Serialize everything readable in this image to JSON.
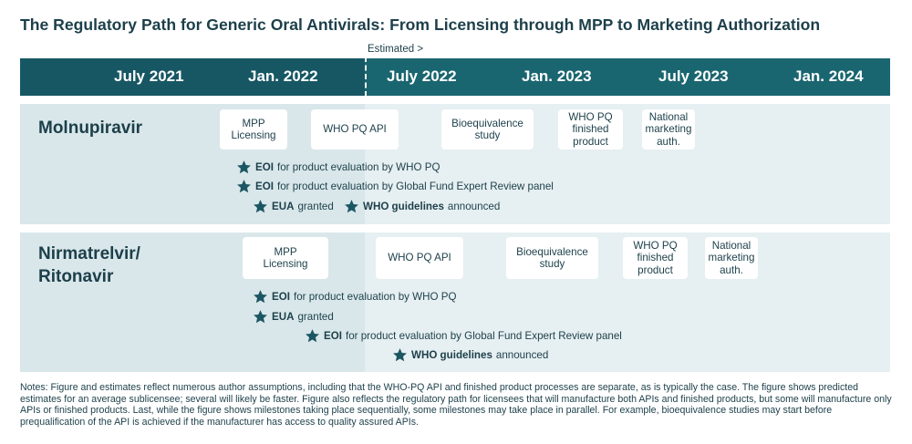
{
  "title": "The Regulatory Path for Generic Oral Antivirals: From Licensing through MPP to Marketing Authorization",
  "estimated_label": "Estimated >",
  "timeline": [
    "July 2021",
    "Jan. 2022",
    "July 2022",
    "Jan. 2023",
    "July 2023",
    "Jan. 2024"
  ],
  "rows": [
    {
      "label": "Molnupiravir",
      "milestones": [
        "MPP\nLicensing",
        "WHO PQ API",
        "Bioequivalence\nstudy",
        "WHO PQ\nfinished\nproduct",
        "National\nmarketing\nauth."
      ],
      "events": [
        {
          "bold": "EOI",
          "text": "for product evaluation by WHO PQ"
        },
        {
          "bold": "EOI",
          "text": "for product evaluation by Global Fund Expert Review panel"
        },
        {
          "bold": "EUA",
          "text": "granted"
        },
        {
          "bold": "WHO guidelines",
          "text": "announced"
        }
      ]
    },
    {
      "label": "Nirmatrelvir/\nRitonavir",
      "milestones": [
        "MPP\nLicensing",
        "WHO PQ API",
        "Bioequivalence\nstudy",
        "WHO PQ\nfinished\nproduct",
        "National\nmarketing\nauth."
      ],
      "events": [
        {
          "bold": "EOI",
          "text": "for product evaluation by WHO PQ"
        },
        {
          "bold": "EUA",
          "text": "granted"
        },
        {
          "bold": "EOI",
          "text": "for product evaluation by Global Fund Expert Review panel"
        },
        {
          "bold": "WHO guidelines",
          "text": "announced"
        }
      ]
    }
  ],
  "notes": "Notes: Figure and estimates reflect numerous author assumptions, including that the WHO-PQ API and finished product processes are separate, as is typically the case. The figure shows predicted estimates for an average sublicensee; several will likely be faster. Figure also reflects the regulatory path for licensees that will manufacture both APIs and finished products, but some will manufacture only APIs or finished products. Last, while the figure shows milestones taking place sequentially, some milestones may take place in parallel. For example, bioequivalence studies may start before prequalification of the API is achieved if the manufacturer has access to quality assured APIs.",
  "colors": {
    "header": "#175764",
    "header_estimated": "#1a6670",
    "panel": "#d9e7ea",
    "panel_estimated": "#e6eff1",
    "text": "#1c3f4a",
    "star": "#1c5663"
  },
  "icons": {
    "event_marker": "star-icon"
  }
}
